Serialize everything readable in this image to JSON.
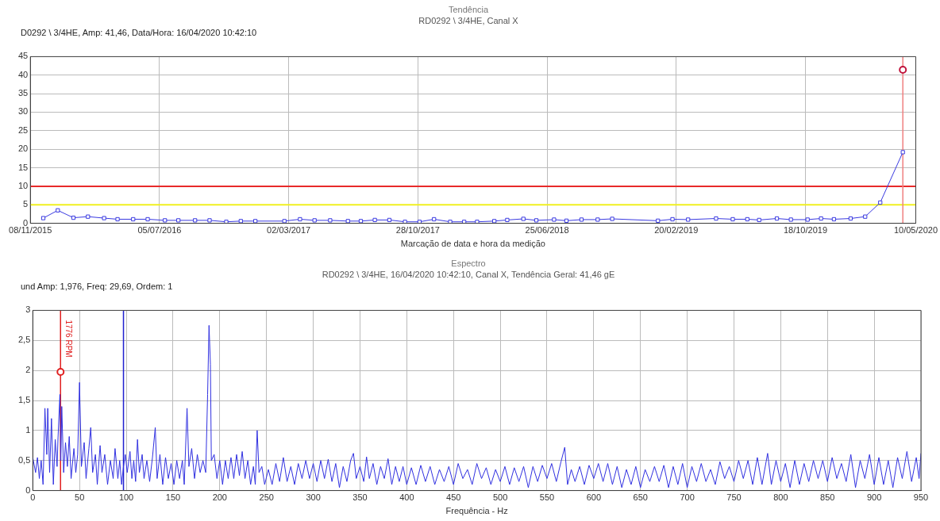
{
  "chart_data": [
    {
      "type": "line",
      "title": "Tendência",
      "subtitle": "RD0292 \\ 3/4HE, Canal X",
      "xlabel": "Marcação de data e hora da medição",
      "annotations": [
        "D0292 \\ 3/4HE, Amp: 41,46, Data/Hora: 16/04/2020 10:42:10"
      ],
      "series": [
        {
          "color": "#3a3ae0",
          "marker": "square",
          "x": [
            "2015-12-02",
            "2015-12-29",
            "2016-01-27",
            "2016-02-23",
            "2016-03-24",
            "2016-04-18",
            "2016-05-17",
            "2016-06-13",
            "2016-07-15",
            "2016-08-09",
            "2016-09-09",
            "2016-10-06",
            "2016-11-06",
            "2016-12-03",
            "2016-12-30",
            "2017-02-22",
            "2017-03-23",
            "2017-04-19",
            "2017-05-18",
            "2017-06-20",
            "2017-07-14",
            "2017-08-09",
            "2017-09-05",
            "2017-10-04",
            "2017-10-31",
            "2017-11-27",
            "2017-12-27",
            "2018-01-22",
            "2018-02-15",
            "2018-03-19",
            "2018-04-12",
            "2018-05-12",
            "2018-06-05",
            "2018-07-08",
            "2018-07-31",
            "2018-08-28",
            "2018-09-27",
            "2018-10-24",
            "2019-01-17",
            "2019-02-13",
            "2019-03-14",
            "2019-05-05",
            "2019-06-05",
            "2019-07-02",
            "2019-07-24",
            "2019-08-26",
            "2019-09-21",
            "2019-10-22",
            "2019-11-16",
            "2019-12-10",
            "2020-01-10",
            "2020-02-06",
            "2020-03-05",
            "2020-04-16"
          ],
          "values": [
            1.4,
            3.5,
            1.5,
            1.8,
            1.4,
            1.1,
            1.1,
            1.1,
            0.8,
            0.8,
            0.8,
            0.8,
            0.4,
            0.6,
            0.6,
            0.6,
            1.1,
            0.8,
            0.8,
            0.6,
            0.6,
            0.9,
            0.9,
            0.4,
            0.4,
            1.1,
            0.4,
            0.4,
            0.4,
            0.6,
            0.9,
            1.2,
            0.8,
            1.0,
            0.7,
            1.0,
            1.0,
            1.2,
            0.7,
            1.1,
            1.0,
            1.3,
            1.1,
            1.1,
            0.9,
            1.3,
            1.0,
            1.0,
            1.3,
            1.1,
            1.3,
            1.8,
            5.6,
            19.2
          ]
        },
        {
          "type": "scatter",
          "color": "#c0143c",
          "marker": "circle",
          "x": [
            "2020-04-16"
          ],
          "values": [
            41.46
          ]
        }
      ],
      "xlim": [
        "2015-11-08",
        "2020-05-10"
      ],
      "xticks": [
        {
          "value": "2015-11-08",
          "label": "08/11/2015"
        },
        {
          "value": "2016-07-05",
          "label": "05/07/2016"
        },
        {
          "value": "2017-03-02",
          "label": "02/03/2017"
        },
        {
          "value": "2017-10-28",
          "label": "28/10/2017"
        },
        {
          "value": "2018-06-25",
          "label": "25/06/2018"
        },
        {
          "value": "2019-02-20",
          "label": "20/02/2019"
        },
        {
          "value": "2019-10-18",
          "label": "18/10/2019"
        },
        {
          "value": "2020-05-10",
          "label": "10/05/2020"
        }
      ],
      "ylim": [
        0,
        45
      ],
      "yticks": [
        0,
        5,
        10,
        15,
        20,
        25,
        30,
        35,
        40,
        45
      ],
      "ref_lines": [
        {
          "axis": "y",
          "value": 10,
          "color": "#e82a2a"
        },
        {
          "axis": "y",
          "value": 5,
          "color": "#f0f020"
        },
        {
          "axis": "x",
          "value": "2020-04-16",
          "color": "#f08080"
        }
      ],
      "grid": true
    },
    {
      "type": "line",
      "title": "Espectro",
      "subtitle": "RD0292 \\ 3/4HE, 16/04/2020 10:42:10, Canal X, Tendência Geral: 41,46 gE",
      "xlabel": "Frequência - Hz",
      "annotations": [
        "und Amp: 1,976, Freq: 29,69, Ordem: 1"
      ],
      "series": [
        {
          "color": "#3030e0",
          "marker": "none",
          "x": [
            0,
            3,
            5,
            7,
            9,
            11,
            13,
            15,
            16,
            18,
            20,
            22,
            24,
            26,
            27,
            29,
            30,
            31,
            33,
            35,
            37,
            39,
            41,
            44,
            46,
            48,
            50,
            52,
            55,
            57,
            60,
            62,
            64,
            67,
            69,
            72,
            74,
            77,
            80,
            83,
            86,
            88,
            91,
            93,
            95,
            97,
            99,
            101,
            104,
            106,
            108,
            110,
            112,
            114,
            117,
            119,
            122,
            125,
            128,
            131,
            133,
            136,
            139,
            142,
            145,
            148,
            151,
            154,
            157,
            160,
            162,
            165,
            167,
            170,
            173,
            176,
            179,
            182,
            185,
            187,
            188.5,
            190,
            191,
            194,
            197,
            200,
            203,
            206,
            209,
            212,
            215,
            218,
            221,
            224,
            227,
            230,
            233,
            236,
            238,
            240,
            242,
            245,
            248,
            252,
            256,
            260,
            264,
            268,
            272,
            276,
            280,
            284,
            288,
            292,
            296,
            300,
            304,
            308,
            312,
            316,
            320,
            324,
            328,
            332,
            336,
            340,
            343,
            346,
            350,
            354,
            357,
            360,
            364,
            368,
            372,
            376,
            380,
            384,
            388,
            392,
            396,
            400,
            405,
            410,
            415,
            420,
            425,
            430,
            435,
            440,
            445,
            450,
            455,
            460,
            465,
            470,
            475,
            480,
            485,
            490,
            495,
            500,
            505,
            510,
            515,
            520,
            525,
            530,
            535,
            540,
            545,
            550,
            555,
            560,
            565,
            569,
            572,
            576,
            580,
            585,
            590,
            595,
            600,
            605,
            610,
            615,
            620,
            625,
            630,
            635,
            640,
            645,
            650,
            655,
            660,
            665,
            670,
            675,
            680,
            685,
            690,
            695,
            700,
            705,
            710,
            715,
            720,
            725,
            730,
            735,
            740,
            745,
            750,
            755,
            760,
            765,
            770,
            775,
            780,
            786,
            790,
            795,
            800,
            805,
            810,
            815,
            820,
            825,
            830,
            835,
            840,
            845,
            850,
            855,
            860,
            865,
            870,
            875,
            880,
            885,
            890,
            895,
            900,
            905,
            910,
            915,
            920,
            925,
            930,
            935,
            940,
            945,
            948,
            950
          ],
          "values": [
            0.55,
            0.3,
            0.55,
            0.2,
            0.5,
            0.1,
            1.37,
            0.6,
            1.37,
            0.3,
            1.2,
            0.1,
            0.85,
            0.4,
            0.88,
            1.6,
            0.5,
            1.4,
            0.3,
            0.8,
            0.4,
            0.9,
            0.2,
            0.7,
            0.3,
            0.6,
            1.8,
            0.4,
            0.8,
            0.2,
            0.7,
            1.05,
            0.3,
            0.6,
            0.1,
            0.75,
            0.3,
            0.6,
            0.1,
            0.5,
            0.2,
            0.7,
            0.2,
            0.5,
            0.1,
            0.4,
            0.6,
            0.3,
            0.65,
            0.2,
            0.5,
            0.15,
            0.85,
            0.3,
            0.6,
            0.2,
            0.5,
            0.15,
            0.55,
            1.05,
            0.2,
            0.6,
            0.1,
            0.55,
            0.2,
            0.45,
            0.1,
            0.5,
            0.2,
            0.5,
            0.1,
            1.37,
            0.4,
            0.7,
            0.2,
            0.6,
            0.3,
            0.5,
            0.3,
            1.6,
            2.75,
            2.1,
            0.5,
            0.6,
            0.2,
            0.5,
            0.1,
            0.5,
            0.2,
            0.55,
            0.2,
            0.6,
            0.25,
            0.65,
            0.2,
            0.5,
            0.1,
            0.4,
            0.1,
            1.0,
            0.3,
            0.4,
            0.1,
            0.35,
            0.1,
            0.45,
            0.15,
            0.55,
            0.15,
            0.4,
            0.1,
            0.45,
            0.2,
            0.5,
            0.2,
            0.45,
            0.15,
            0.5,
            0.2,
            0.52,
            0.15,
            0.45,
            0.05,
            0.4,
            0.15,
            0.5,
            0.62,
            0.2,
            0.4,
            0.15,
            0.56,
            0.2,
            0.45,
            0.1,
            0.4,
            0.2,
            0.53,
            0.1,
            0.4,
            0.15,
            0.4,
            0.1,
            0.38,
            0.1,
            0.42,
            0.15,
            0.4,
            0.1,
            0.35,
            0.15,
            0.4,
            0.1,
            0.45,
            0.2,
            0.35,
            0.1,
            0.45,
            0.2,
            0.38,
            0.1,
            0.35,
            0.15,
            0.4,
            0.1,
            0.38,
            0.15,
            0.4,
            0.05,
            0.4,
            0.15,
            0.42,
            0.2,
            0.45,
            0.15,
            0.48,
            0.72,
            0.1,
            0.35,
            0.15,
            0.4,
            0.1,
            0.42,
            0.2,
            0.45,
            0.15,
            0.45,
            0.1,
            0.4,
            0.05,
            0.35,
            0.1,
            0.4,
            0.05,
            0.35,
            0.15,
            0.4,
            0.15,
            0.42,
            0.05,
            0.4,
            0.1,
            0.45,
            0.05,
            0.4,
            0.15,
            0.45,
            0.15,
            0.35,
            0.1,
            0.48,
            0.2,
            0.4,
            0.15,
            0.5,
            0.2,
            0.5,
            0.1,
            0.55,
            0.1,
            0.62,
            0.1,
            0.5,
            0.15,
            0.45,
            0.05,
            0.5,
            0.1,
            0.45,
            0.15,
            0.5,
            0.2,
            0.5,
            0.15,
            0.55,
            0.2,
            0.45,
            0.15,
            0.6,
            0.05,
            0.5,
            0.2,
            0.6,
            0.1,
            0.55,
            0.1,
            0.5,
            0.05,
            0.55,
            0.2,
            0.65,
            0.15,
            0.55,
            0.2,
            0.62
          ]
        },
        {
          "type": "scatter",
          "color": "#e02020",
          "marker": "circle",
          "x": [
            29.69
          ],
          "values": [
            1.976
          ]
        }
      ],
      "xlim": [
        0,
        950
      ],
      "xticks": [
        0,
        50,
        100,
        150,
        200,
        250,
        300,
        350,
        400,
        450,
        500,
        550,
        600,
        650,
        700,
        750,
        800,
        850,
        900,
        950
      ],
      "ylim": [
        0,
        3
      ],
      "yticks": [
        0,
        {
          "value": 0.5,
          "label": "0,5"
        },
        1,
        {
          "value": 1.5,
          "label": "1,5"
        },
        2,
        {
          "value": 2.5,
          "label": "2,5"
        },
        3
      ],
      "ref_lines": [
        {
          "axis": "x",
          "value": 29.69,
          "label": "1776 RPM",
          "color": "#e02020"
        },
        {
          "axis": "x",
          "value": 97,
          "color": "#2020d0"
        }
      ],
      "grid": true
    }
  ]
}
